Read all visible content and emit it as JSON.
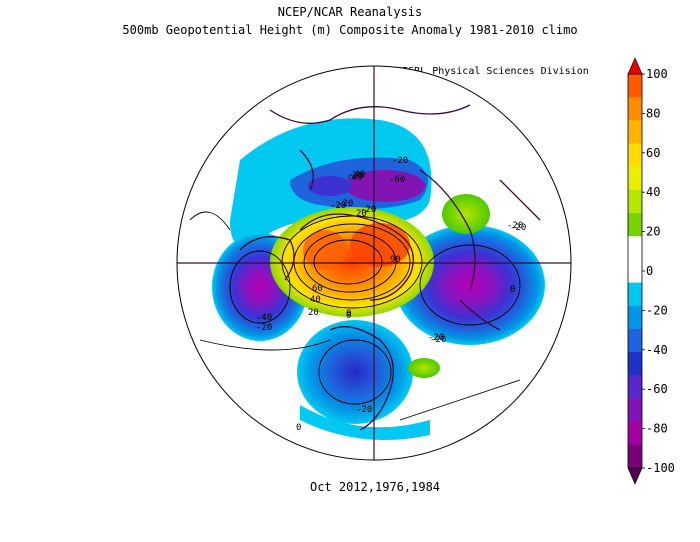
{
  "title": "NCEP/NCAR Reanalysis",
  "subtitle": "500mb Geopotential Height (m) Composite Anomaly 1981-2010 climo",
  "credit": "NOAA/ESRL Physical Sciences Division",
  "footer": "Oct 2012,1976,1984",
  "colorbar": {
    "tick_labels": [
      "100",
      "80",
      "60",
      "40",
      "20",
      "0",
      "-20",
      "-40",
      "-60",
      "-80",
      "-100"
    ],
    "colors_top_to_bottom": [
      "#ff5a00",
      "#ff8c00",
      "#ffb400",
      "#ffdc00",
      "#e8f000",
      "#b4e600",
      "#78d200",
      "#ffffff",
      "#ffffff",
      "#00c8f0",
      "#0096e6",
      "#1e64dc",
      "#1e32c8",
      "#5a28c8",
      "#8214b4",
      "#a000a0",
      "#7a0078"
    ],
    "top_arrow_color": "#e60000",
    "bottom_arrow_color": "#500050"
  },
  "contour_labels": [
    "-20",
    "-40",
    "-60",
    "-20",
    "20",
    "-20",
    "-20",
    "-40",
    "-20",
    "60",
    "40",
    "20",
    "0",
    "90",
    "-20",
    "0",
    "-20",
    "-20",
    "-20",
    "0",
    "0",
    "-20",
    "-40",
    "-20"
  ]
}
